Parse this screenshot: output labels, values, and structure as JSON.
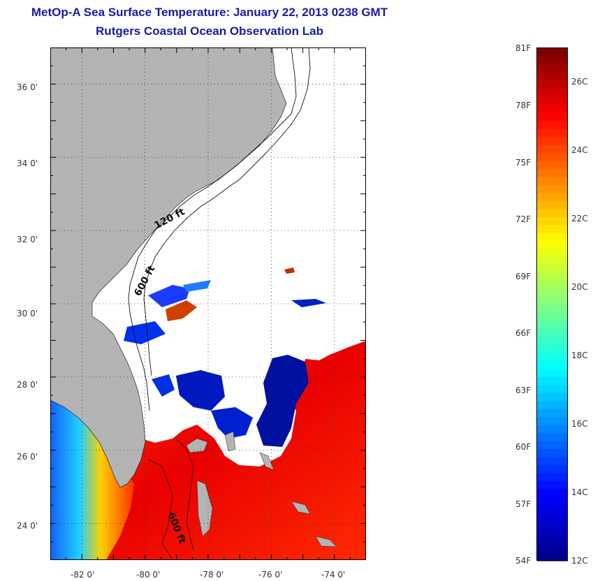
{
  "header": {
    "title": "MetOp-A Sea Surface Temperature:  January 22, 2013 0238 GMT",
    "subtitle": "Rutgers Coastal Ocean Observation Lab"
  },
  "map": {
    "region": "Southeast US coast / Florida / Bahamas",
    "lat_range": [
      23,
      37
    ],
    "lon_range": [
      -83,
      -73
    ],
    "lat_ticks": [
      {
        "value": 24,
        "label": "24 0'"
      },
      {
        "value": 26,
        "label": "26 0'"
      },
      {
        "value": 28,
        "label": "28 0'"
      },
      {
        "value": 30,
        "label": "30 0'"
      },
      {
        "value": 32,
        "label": "32 0'"
      },
      {
        "value": 34,
        "label": "34 0'"
      },
      {
        "value": 36,
        "label": "36 0'"
      }
    ],
    "lon_ticks": [
      {
        "value": -82,
        "label": "-82 0'"
      },
      {
        "value": -80,
        "label": "-80 0'"
      },
      {
        "value": -78,
        "label": "-78 0'"
      },
      {
        "value": -76,
        "label": "-76 0'"
      },
      {
        "value": -74,
        "label": "-74 0'"
      }
    ],
    "grid": "dotted",
    "contour_labels": [
      "120 ft",
      "600 ft",
      "600 ft"
    ],
    "land_color": "#b4b4b4",
    "cloud_color": "#ffffff"
  },
  "colorbar": {
    "min_label": "54F",
    "max_label": "81F",
    "f_labels": [
      "81F",
      "78F",
      "75F",
      "72F",
      "69F",
      "66F",
      "63F",
      "60F",
      "57F",
      "54F"
    ],
    "c_labels": [
      "26C",
      "24C",
      "22C",
      "20C",
      "18C",
      "16C",
      "14C",
      "12C"
    ],
    "colors": [
      "#00008f",
      "#0000ff",
      "#0080ff",
      "#00ffff",
      "#80ff80",
      "#ffff00",
      "#ff8000",
      "#ff0000",
      "#800000"
    ]
  }
}
